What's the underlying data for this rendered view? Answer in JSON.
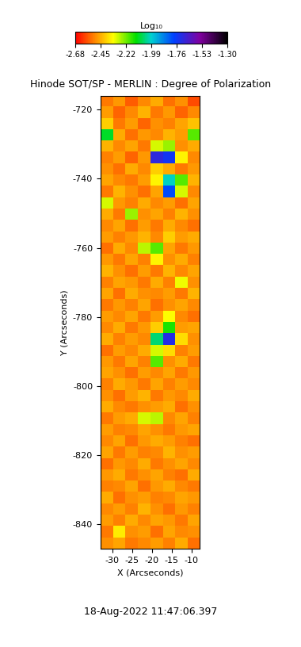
{
  "chart_data": {
    "type": "heatmap",
    "title": "Hinode SOT/SP - MERLIN : Degree of Polarization",
    "x_label": "X (Arcseconds)",
    "y_label": "Y (Arcseconds)",
    "annotation": "18-Aug-2022 11:47:06.397",
    "xlim": [
      -33,
      -8
    ],
    "ylim": [
      -847,
      -716
    ],
    "xticks": [
      -30,
      -25,
      -20,
      -15,
      -10
    ],
    "yticks": [
      -720,
      -740,
      -760,
      -780,
      -800,
      -820,
      -840
    ],
    "cells": [
      [
        -2.52,
        -2.48,
        -2.56,
        -2.5,
        -2.45,
        -2.53,
        -2.49,
        -2.58
      ],
      [
        -2.47,
        -2.55,
        -2.5,
        -2.44,
        -2.52,
        -2.48,
        -2.55,
        -2.5
      ],
      [
        -2.4,
        -2.52,
        -2.47,
        -2.55,
        -2.49,
        -2.51,
        -2.46,
        -2.42
      ],
      [
        -2.1,
        -2.45,
        -2.53,
        -2.48,
        -2.5,
        -2.44,
        -2.47,
        -2.2
      ],
      [
        -2.44,
        -2.5,
        -2.46,
        -2.52,
        -2.3,
        -2.25,
        -2.49,
        -2.45
      ],
      [
        -2.51,
        -2.47,
        -2.55,
        -2.48,
        -1.7,
        -1.75,
        -2.35,
        -2.5
      ],
      [
        -2.49,
        -2.53,
        -2.45,
        -2.5,
        -2.4,
        -2.45,
        -2.52,
        -2.48
      ],
      [
        -2.46,
        -2.5,
        -2.52,
        -2.47,
        -2.35,
        -2.0,
        -2.2,
        -2.44
      ],
      [
        -2.52,
        -2.44,
        -2.49,
        -2.53,
        -2.46,
        -1.8,
        -2.3,
        -2.5
      ],
      [
        -2.3,
        -2.48,
        -2.51,
        -2.45,
        -2.5,
        -2.47,
        -2.53,
        -2.46
      ],
      [
        -2.45,
        -2.52,
        -2.25,
        -2.49,
        -2.46,
        -2.51,
        -2.44,
        -2.49
      ],
      [
        -2.5,
        -2.46,
        -2.53,
        -2.47,
        -2.52,
        -2.45,
        -2.5,
        -2.53
      ],
      [
        -2.47,
        -2.51,
        -2.48,
        -2.44,
        -2.5,
        -2.4,
        -2.47,
        -2.45
      ],
      [
        -2.53,
        -2.45,
        -2.5,
        -2.28,
        -2.2,
        -2.46,
        -2.52,
        -2.48
      ],
      [
        -2.48,
        -2.52,
        -2.46,
        -2.51,
        -2.35,
        -2.49,
        -2.45,
        -2.51
      ],
      [
        -2.44,
        -2.49,
        -2.53,
        -2.47,
        -2.52,
        -2.44,
        -2.5,
        -2.46
      ],
      [
        -2.51,
        -2.46,
        -2.48,
        -2.52,
        -2.45,
        -2.51,
        -2.32,
        -2.49
      ],
      [
        -2.46,
        -2.53,
        -2.45,
        -2.49,
        -2.5,
        -2.47,
        -2.52,
        -2.44
      ],
      [
        -2.52,
        -2.48,
        -2.51,
        -2.46,
        -2.53,
        -2.49,
        -2.46,
        -2.5
      ],
      [
        -2.47,
        -2.5,
        -2.46,
        -2.52,
        -2.47,
        -2.33,
        -2.5,
        -2.53
      ],
      [
        -2.5,
        -2.45,
        -2.52,
        -2.48,
        -2.4,
        -2.15,
        -2.47,
        -2.46
      ],
      [
        -2.45,
        -2.51,
        -2.47,
        -2.5,
        -2.05,
        -1.72,
        -2.38,
        -2.49
      ],
      [
        -2.53,
        -2.47,
        -2.5,
        -2.45,
        -2.3,
        -2.38,
        -2.51,
        -2.47
      ],
      [
        -2.48,
        -2.52,
        -2.46,
        -2.51,
        -2.2,
        -2.49,
        -2.45,
        -2.52
      ],
      [
        -2.46,
        -2.49,
        -2.53,
        -2.47,
        -2.5,
        -2.46,
        -2.52,
        -2.48
      ],
      [
        -2.51,
        -2.45,
        -2.48,
        -2.52,
        -2.46,
        -2.51,
        -2.47,
        -2.5
      ],
      [
        -2.49,
        -2.53,
        -2.47,
        -2.44,
        -2.52,
        -2.48,
        -2.5,
        -2.45
      ],
      [
        -2.45,
        -2.5,
        -2.52,
        -2.49,
        -2.47,
        -2.45,
        -2.53,
        -2.49
      ],
      [
        -2.52,
        -2.47,
        -2.45,
        -2.3,
        -2.28,
        -2.5,
        -2.46,
        -2.51
      ],
      [
        -2.47,
        -2.51,
        -2.5,
        -2.46,
        -2.49,
        -2.52,
        -2.48,
        -2.46
      ],
      [
        -2.5,
        -2.46,
        -2.53,
        -2.48,
        -2.45,
        -2.47,
        -2.51,
        -2.53
      ],
      [
        -2.46,
        -2.52,
        -2.47,
        -2.51,
        -2.5,
        -2.44,
        -2.49,
        -2.47
      ],
      [
        -2.53,
        -2.48,
        -2.5,
        -2.45,
        -2.52,
        -2.49,
        -2.46,
        -2.5
      ],
      [
        -2.48,
        -2.45,
        -2.52,
        -2.49,
        -2.46,
        -2.51,
        -2.53,
        -2.45
      ],
      [
        -2.51,
        -2.5,
        -2.46,
        -2.53,
        -2.48,
        -2.45,
        -2.5,
        -2.52
      ],
      [
        -2.45,
        -2.53,
        -2.49,
        -2.47,
        -2.51,
        -2.5,
        -2.46,
        -2.48
      ],
      [
        -2.5,
        -2.47,
        -2.51,
        -2.44,
        -2.49,
        -2.53,
        -2.48,
        -2.51
      ],
      [
        -2.47,
        -2.51,
        -2.45,
        -2.5,
        -2.46,
        -2.48,
        -2.52,
        -2.46
      ],
      [
        -2.52,
        -2.36,
        -2.49,
        -2.47,
        -2.53,
        -2.46,
        -2.5,
        -2.49
      ],
      [
        -2.49,
        -2.46,
        -2.52,
        -2.5,
        -2.47,
        -2.51,
        -2.45,
        -2.53
      ]
    ],
    "colorbar": {
      "label": "Log₁₀",
      "range": [
        -2.68,
        -1.3
      ],
      "ticks": [
        -2.68,
        -2.45,
        -2.22,
        -1.99,
        -1.76,
        -1.53,
        {
          "value": -1.3,
          "label": "-1.30"
        }
      ]
    }
  }
}
